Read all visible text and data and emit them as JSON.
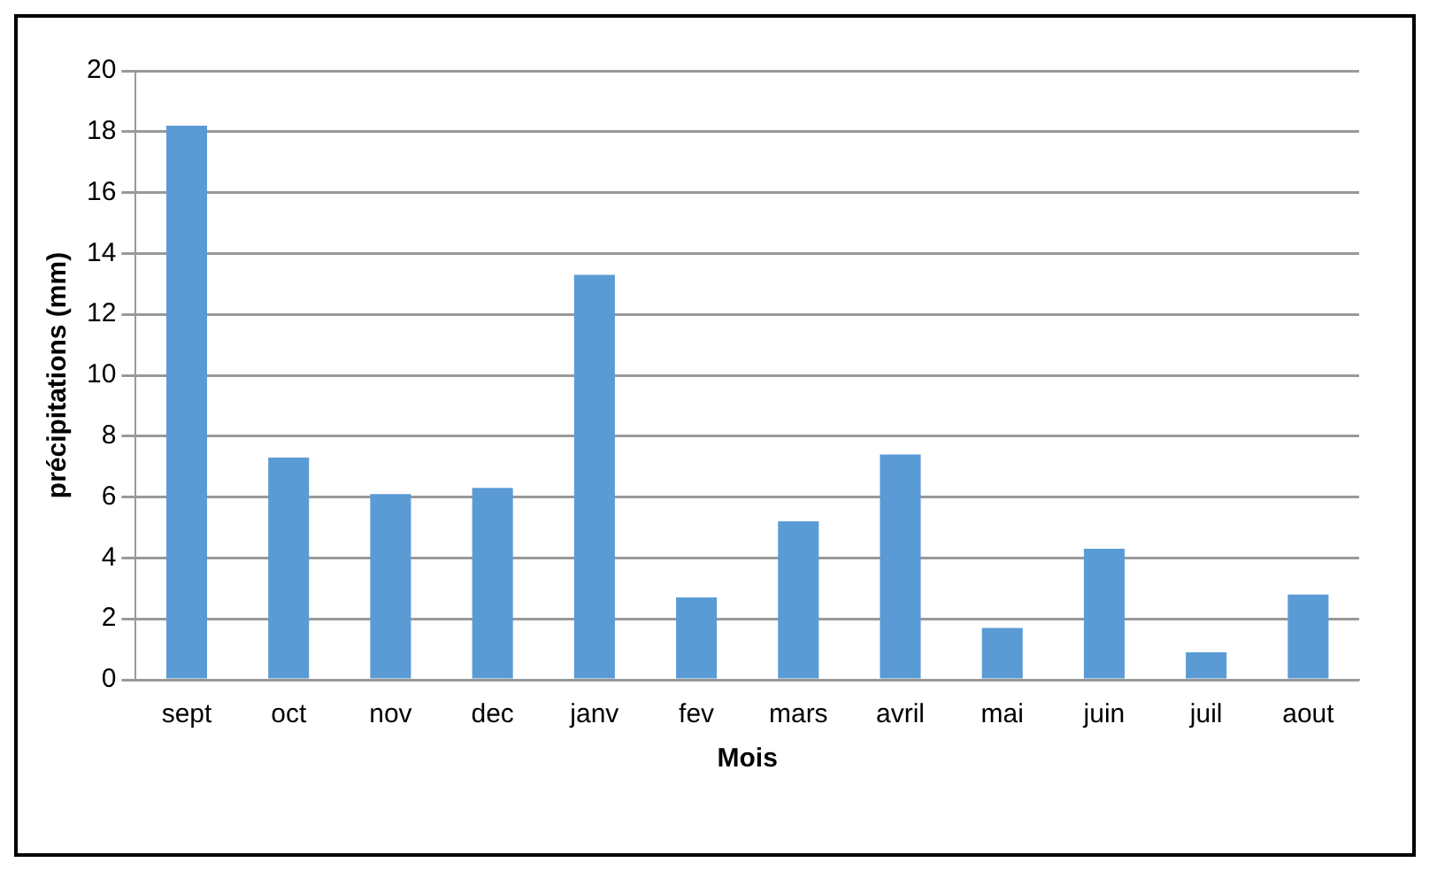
{
  "chart_data": {
    "type": "bar",
    "xlabel": "Mois",
    "ylabel": "précipitations (mm)",
    "categories": [
      "sept",
      "oct",
      "nov",
      "dec",
      "janv",
      "fev",
      "mars",
      "avril",
      "mai",
      "juin",
      "juil",
      "aout"
    ],
    "values": [
      18.2,
      7.3,
      6.1,
      6.3,
      13.3,
      2.7,
      5.2,
      7.4,
      1.7,
      4.3,
      0.9,
      2.8
    ],
    "color": "#5b9bd5",
    "ylim": [
      0,
      20
    ],
    "yticks": [
      0,
      2,
      4,
      6,
      8,
      10,
      12,
      14,
      16,
      18,
      20
    ],
    "grid": "y",
    "legend": false
  }
}
